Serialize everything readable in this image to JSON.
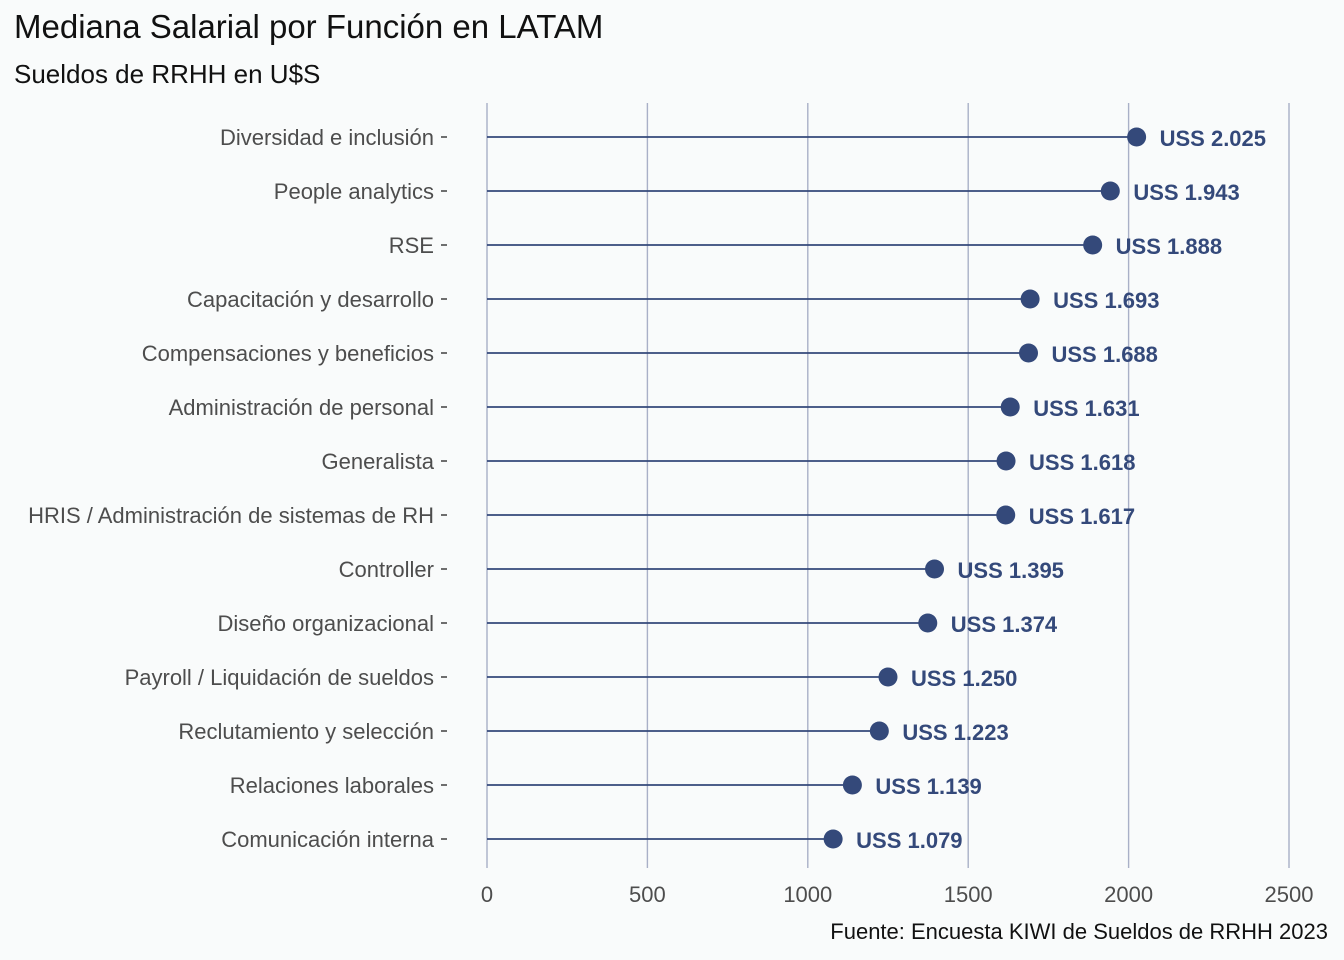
{
  "chart_data": {
    "type": "lollipop",
    "title": "Mediana Salarial por Función en LATAM",
    "subtitle": "Sueldos de RRHH en U$S",
    "caption": "Fuente: Encuesta KIWI de Sueldos de RRHH 2023",
    "xlabel": "",
    "ylabel": "",
    "xlim": [
      0,
      2500
    ],
    "x_ticks": [
      0,
      500,
      1000,
      1500,
      2000,
      2500
    ],
    "grid": "vertical major",
    "orientation": "horizontal",
    "categories": [
      "Diversidad e inclusión",
      "People analytics",
      "RSE",
      "Capacitación y desarrollo",
      "Compensaciones y beneficios",
      "Administración de personal",
      "Generalista",
      "HRIS / Administración de sistemas de RH",
      "Controller",
      "Diseño organizacional",
      "Payroll / Liquidación de sueldos",
      "Reclutamiento y selección",
      "Relaciones laborales",
      "Comunicación interna"
    ],
    "values": [
      2025,
      1943,
      1888,
      1693,
      1688,
      1631,
      1618,
      1617,
      1395,
      1374,
      1250,
      1223,
      1139,
      1079
    ],
    "data_labels": [
      "USS 2.025",
      "USS 1.943",
      "USS 1.888",
      "USS 1.693",
      "USS 1.688",
      "USS 1.631",
      "USS 1.618",
      "USS 1.617",
      "USS 1.395",
      "USS 1.374",
      "USS 1.250",
      "USS 1.223",
      "USS 1.139",
      "USS 1.079"
    ],
    "colors": {
      "series": "#34497a",
      "grid": "#a9b0c7",
      "background": "#f9fbfb"
    }
  }
}
